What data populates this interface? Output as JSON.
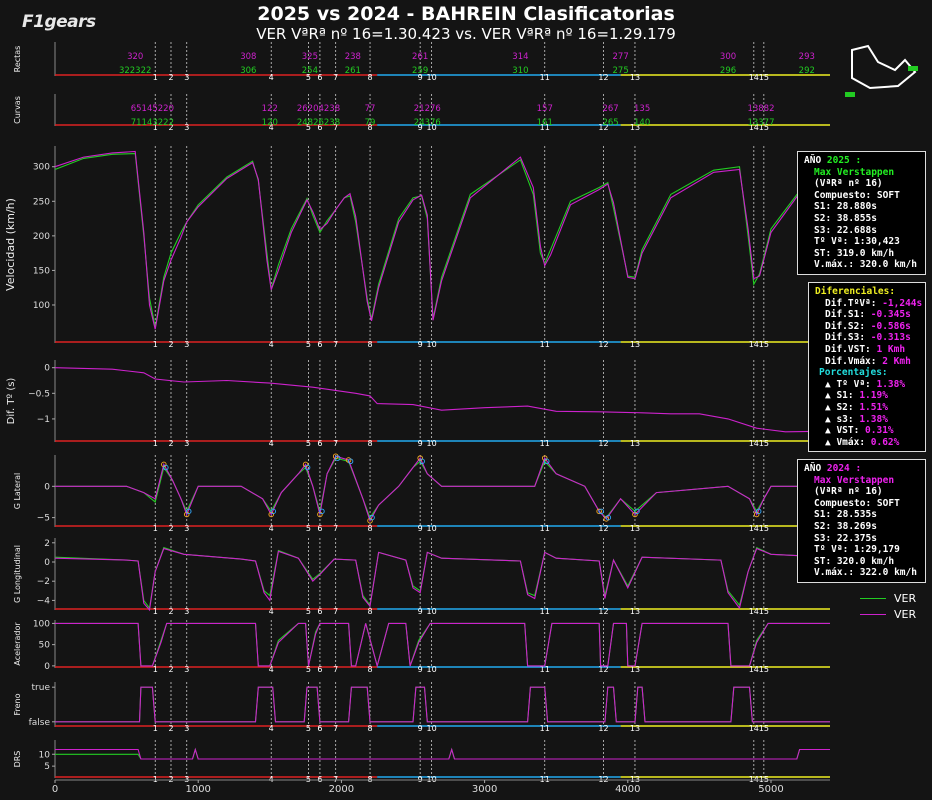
{
  "header": {
    "title": "2025 vs 2024 - BAHREIN Clasificatorias",
    "subtitle": "VER VªRª nº  16=1.30.423 vs. VER VªRª nº  16=1.29.179",
    "logo_text": "F1gears"
  },
  "colors": {
    "bg": "#141414",
    "series_2025": "#22cc22",
    "series_2024": "#cc22cc",
    "sector1": "#dd2222",
    "sector2": "#22aaee",
    "sector3": "#eeee22",
    "grid": "#444444"
  },
  "corners": {
    "labels": [
      "1",
      "2",
      "3",
      "4",
      "5",
      "6",
      "7",
      "8",
      "9",
      "10",
      "11",
      "12",
      "13",
      "14",
      "15"
    ],
    "distance_m": [
      700,
      810,
      920,
      1510,
      1770,
      1850,
      1960,
      2200,
      2550,
      2630,
      3420,
      3830,
      4050,
      4880,
      4950
    ]
  },
  "panels": {
    "rectas": {
      "ylabel": "Rectas",
      "top_values": [
        "320",
        "308",
        "325",
        "238",
        "261",
        "314",
        "277",
        "300",
        "293"
      ],
      "bottom_values": [
        "322322",
        "306",
        "254",
        "261",
        "259",
        "310",
        "275",
        "296",
        "292"
      ]
    },
    "curvas": {
      "ylabel": "Curvas",
      "top_values": [
        "65145220",
        "122",
        "26204238",
        "77",
        "21276",
        "157",
        "267",
        "135",
        "13882"
      ],
      "bottom_values": [
        "71143222",
        "120",
        "24826238",
        "79",
        "24376",
        "161",
        "265",
        "140",
        "13377"
      ]
    },
    "velocidad": {
      "ylabel": "Velocidad (km/h)",
      "ticks": [
        "100",
        "150",
        "200",
        "250",
        "300"
      ]
    },
    "dif": {
      "ylabel": "Dif. Tº (s)",
      "ticks": [
        "0",
        "−0.5",
        "−1"
      ]
    },
    "glat": {
      "ylabel": "G Lateral",
      "ticks": [
        "0",
        "−5"
      ]
    },
    "glong": {
      "ylabel": "G Longitudinal",
      "ticks": [
        "2",
        "0",
        "−2",
        "−4"
      ]
    },
    "acel": {
      "ylabel": "Acelerador",
      "ticks": [
        "100",
        "50",
        "0"
      ]
    },
    "freno": {
      "ylabel": "Freno",
      "ticks": [
        "true",
        "false"
      ]
    },
    "drs": {
      "ylabel": "DRS",
      "ticks": [
        "10",
        "5"
      ]
    }
  },
  "x_axis": {
    "ticks": [
      "0",
      "1000",
      "2000",
      "3000",
      "4000",
      "5000"
    ]
  },
  "legend": {
    "s1": "VER",
    "s2": "VER"
  },
  "box_2025": {
    "heading": "AÑO ",
    "year": "2025 :",
    "driver": "Max Verstappen",
    "lap": "(VªRª nº 16)",
    "compound": "Compuesto: SOFT",
    "s1": "S1: 28.880s",
    "s2": "S2: 38.855s",
    "s3": "S3: 22.688s",
    "time": "Tº Vª: 1:30,423",
    "st": "ST: 319.0 km/h",
    "vmax": "V.máx.: 320.0 km/h"
  },
  "box_diff": {
    "heading": "Diferenciales:",
    "rows": [
      {
        "label": "Dif.TºVª: ",
        "value": "-1,244s"
      },
      {
        "label": "Dif.S1: ",
        "value": "-0.345s"
      },
      {
        "label": "Dif.S2: ",
        "value": "-0.586s"
      },
      {
        "label": "Dif.S3: ",
        "value": "-0.313s"
      },
      {
        "label": "Dif.VST: ",
        "value": "1 Kmh"
      },
      {
        "label": "Dif.Vmáx: ",
        "value": "2 Kmh"
      }
    ],
    "pct_heading": "Porcentajes:",
    "pct_rows": [
      {
        "label": "▲ Tº Vª: ",
        "value": "1.38%"
      },
      {
        "label": "▲ S1: ",
        "value": "1.19%"
      },
      {
        "label": "▲ S2: ",
        "value": "1.51%"
      },
      {
        "label": "▲ s3: ",
        "value": "1.38%"
      },
      {
        "label": "▲ VST: ",
        "value": "0.31%"
      },
      {
        "label": "▲ Vmáx: ",
        "value": "0.62%"
      }
    ]
  },
  "box_2024": {
    "heading": "AÑO ",
    "year": "2024 :",
    "driver": "Max Verstappen",
    "lap": "(VªRª nº 16)",
    "compound": "Compuesto: SOFT",
    "s1": "S1: 28.535s",
    "s2": "S2: 38.269s",
    "s3": "S3: 22.375s",
    "time": "Tº Vª: 1:29,179",
    "st": "ST: 320.0 km/h",
    "vmax": "V.máx.: 322.0 km/h"
  },
  "chart_data": {
    "type": "line",
    "title": "2025 vs 2024 - BAHREIN Clasificatorias",
    "subtitle": "VER VªRª nº  16=1.30.423 vs. VER VªRª nº  16=1.29.179",
    "xlim": [
      0,
      5412
    ],
    "x_ticks": [
      0,
      1000,
      2000,
      3000,
      4000,
      5000
    ],
    "speed": {
      "ylabel": "Velocidad (km/h)",
      "ylim": [
        45,
        330
      ],
      "x": [
        0,
        200,
        400,
        560,
        620,
        660,
        700,
        760,
        810,
        880,
        920,
        1000,
        1200,
        1380,
        1420,
        1480,
        1510,
        1560,
        1650,
        1760,
        1800,
        1850,
        1900,
        1960,
        2020,
        2060,
        2100,
        2180,
        2210,
        2260,
        2400,
        2500,
        2560,
        2600,
        2640,
        2700,
        2900,
        3250,
        3340,
        3390,
        3420,
        3460,
        3600,
        3800,
        3860,
        3900,
        4000,
        4050,
        4100,
        4300,
        4600,
        4780,
        4840,
        4880,
        4920,
        5000,
        5200,
        5412
      ],
      "series": [
        {
          "name": "VER",
          "year": "2025",
          "values": [
            296,
            312,
            318,
            319,
            200,
            110,
            68,
            140,
            175,
            205,
            220,
            245,
            285,
            308,
            280,
            175,
            123,
            158,
            210,
            254,
            230,
            205,
            222,
            238,
            255,
            258,
            220,
            110,
            80,
            130,
            225,
            255,
            258,
            225,
            80,
            140,
            260,
            310,
            260,
            175,
            160,
            180,
            250,
            270,
            277,
            240,
            142,
            140,
            180,
            260,
            295,
            300,
            200,
            130,
            145,
            210,
            265,
            293
          ]
        },
        {
          "name": "VER",
          "year": "2024",
          "values": [
            300,
            314,
            320,
            322,
            205,
            100,
            65,
            135,
            165,
            198,
            220,
            242,
            283,
            306,
            282,
            165,
            122,
            150,
            205,
            252,
            235,
            209,
            218,
            238,
            255,
            261,
            228,
            105,
            77,
            125,
            220,
            252,
            259,
            230,
            78,
            135,
            255,
            314,
            270,
            185,
            157,
            172,
            245,
            267,
            275,
            248,
            140,
            138,
            175,
            255,
            292,
            296,
            210,
            138,
            142,
            205,
            262,
            292
          ]
        }
      ]
    },
    "delta_time": {
      "ylabel": "Dif. Tº (s)",
      "ylim": [
        -1.45,
        0.15
      ],
      "x": [
        0,
        400,
        620,
        700,
        900,
        1200,
        1500,
        1800,
        2100,
        2200,
        2250,
        2500,
        2700,
        3000,
        3300,
        3500,
        3800,
        4100,
        4300,
        4500,
        4700,
        4900,
        5100,
        5412
      ],
      "values": [
        0,
        -0.03,
        -0.1,
        -0.22,
        -0.28,
        -0.25,
        -0.3,
        -0.38,
        -0.5,
        -0.55,
        -0.7,
        -0.72,
        -0.83,
        -0.78,
        -0.75,
        -0.85,
        -0.86,
        -0.88,
        -0.9,
        -0.9,
        -1.0,
        -1.18,
        -1.25,
        -1.24
      ]
    },
    "lateral_g": {
      "ylabel": "G Lateral",
      "ylim": [
        -6.5,
        5
      ],
      "x": [
        0,
        500,
        620,
        700,
        760,
        820,
        880,
        920,
        1000,
        1300,
        1450,
        1510,
        1580,
        1700,
        1750,
        1800,
        1850,
        1900,
        1960,
        2050,
        2150,
        2200,
        2260,
        2400,
        2500,
        2550,
        2600,
        2700,
        3000,
        3350,
        3420,
        3500,
        3700,
        3800,
        3850,
        3950,
        4050,
        4200,
        4700,
        4850,
        4900,
        4950,
        5000,
        5200,
        5412
      ],
      "series": [
        {
          "name": "VER",
          "year": "2025",
          "values": [
            0,
            0,
            -1,
            -2.5,
            3,
            1,
            -2,
            -4,
            0,
            0,
            -2,
            -4,
            -1,
            2,
            3,
            0,
            -4,
            2,
            4.5,
            4,
            -2,
            -5,
            -3,
            0,
            3,
            4,
            2,
            0,
            0,
            0,
            4,
            2,
            0,
            -4,
            -5,
            -2,
            -4,
            -1,
            0,
            -2,
            -4,
            -2,
            0,
            0,
            0
          ]
        },
        {
          "name": "VER",
          "year": "2024",
          "values": [
            0,
            0,
            -1,
            -2,
            3.5,
            1,
            -2,
            -4.5,
            0,
            0,
            -2,
            -4.5,
            -1,
            2,
            3.5,
            0,
            -4.5,
            2,
            4.8,
            4.2,
            -2,
            -5.5,
            -3,
            0,
            3,
            4.5,
            2,
            0,
            0,
            0,
            4.5,
            2,
            0,
            -4,
            -5.2,
            -2,
            -4.5,
            -1,
            0,
            -2,
            -4.5,
            -2,
            0,
            0,
            0
          ]
        }
      ]
    },
    "longitudinal_g": {
      "ylabel": "G Longitudinal",
      "ylim": [
        -5,
        2.5
      ],
      "x": [
        0,
        500,
        580,
        620,
        660,
        700,
        760,
        900,
        1300,
        1400,
        1460,
        1500,
        1560,
        1700,
        1800,
        1850,
        1950,
        2100,
        2150,
        2200,
        2260,
        2450,
        2500,
        2550,
        2600,
        2700,
        3250,
        3300,
        3350,
        3420,
        3500,
        3800,
        3840,
        3900,
        4000,
        4100,
        4650,
        4700,
        4780,
        4840,
        4900,
        5000,
        5412
      ],
      "series": [
        {
          "name": "VER",
          "year": "2025",
          "values": [
            0.5,
            0.2,
            0.1,
            -4,
            -4.8,
            -1,
            1.5,
            0.8,
            0.3,
            0.1,
            -3,
            -3.5,
            1.2,
            0.4,
            -1.8,
            -1.2,
            0.3,
            0.2,
            -3.5,
            -4.5,
            1,
            0.2,
            -2.5,
            -3,
            1,
            0.4,
            0.1,
            -3.2,
            -3.5,
            1,
            0.4,
            0.1,
            -3.5,
            0.2,
            -2.5,
            0.5,
            0.2,
            -3,
            -4.5,
            -1,
            1.5,
            0.8,
            0.5
          ]
        },
        {
          "name": "VER",
          "year": "2024",
          "values": [
            0.4,
            0.2,
            0.1,
            -4.3,
            -5,
            -1,
            1.4,
            0.8,
            0.3,
            0.1,
            -3.2,
            -4,
            1.1,
            0.4,
            -2,
            -1.3,
            0.3,
            0.2,
            -3.7,
            -4.6,
            1,
            0.2,
            -2.7,
            -3.2,
            1,
            0.4,
            0.1,
            -3.4,
            -3.8,
            1,
            0.4,
            0.1,
            -3.8,
            0.2,
            -2.7,
            0.5,
            0.2,
            -3.2,
            -4.8,
            -1,
            1.4,
            0.8,
            0.5
          ]
        }
      ]
    },
    "throttle": {
      "ylabel": "Acelerador",
      "ylim": [
        -5,
        108
      ],
      "x": [
        0,
        580,
        600,
        680,
        740,
        780,
        860,
        1400,
        1420,
        1500,
        1560,
        1700,
        1750,
        1770,
        1820,
        1850,
        1900,
        2050,
        2070,
        2100,
        2170,
        2250,
        2330,
        2450,
        2480,
        2540,
        2620,
        2680,
        3280,
        3300,
        3420,
        3470,
        3800,
        3810,
        3860,
        3900,
        3990,
        4000,
        4050,
        4100,
        4700,
        4720,
        4850,
        4900,
        4980,
        5412
      ],
      "series": [
        {
          "name": "VER",
          "year": "2025",
          "values": [
            100,
            100,
            0,
            0,
            60,
            100,
            100,
            100,
            0,
            0,
            60,
            100,
            100,
            0,
            80,
            100,
            100,
            100,
            0,
            0,
            100,
            0,
            100,
            100,
            0,
            60,
            100,
            100,
            100,
            0,
            0,
            100,
            100,
            0,
            0,
            100,
            100,
            0,
            0,
            100,
            100,
            0,
            0,
            60,
            100,
            100
          ]
        },
        {
          "name": "VER",
          "year": "2024",
          "values": [
            100,
            100,
            0,
            0,
            55,
            100,
            100,
            100,
            0,
            0,
            55,
            100,
            100,
            0,
            75,
            100,
            100,
            100,
            0,
            0,
            100,
            0,
            100,
            100,
            0,
            55,
            100,
            100,
            100,
            0,
            0,
            100,
            100,
            0,
            0,
            100,
            100,
            0,
            0,
            100,
            100,
            0,
            0,
            55,
            100,
            100
          ]
        }
      ]
    },
    "brake": {
      "ylabel": "Freno",
      "ytick_labels": [
        "false",
        "true"
      ],
      "x": [
        0,
        590,
        600,
        680,
        700,
        1400,
        1420,
        1520,
        1540,
        1740,
        1760,
        1830,
        1850,
        2050,
        2070,
        2180,
        2200,
        2250,
        2270,
        2500,
        2520,
        2580,
        2600,
        3300,
        3320,
        3420,
        3440,
        3840,
        3860,
        3900,
        3920,
        4050,
        4070,
        4100,
        4120,
        4720,
        4740,
        4850,
        4870,
        5412
      ],
      "series": [
        {
          "name": "VER",
          "year": "2025",
          "values": [
            0,
            0,
            1,
            1,
            0,
            0,
            1,
            1,
            0,
            0,
            1,
            1,
            0,
            0,
            1,
            1,
            0,
            0,
            0,
            0,
            1,
            1,
            0,
            0,
            1,
            1,
            0,
            0,
            1,
            1,
            0,
            0,
            1,
            1,
            0,
            0,
            1,
            1,
            0,
            0
          ]
        },
        {
          "name": "VER",
          "year": "2024",
          "values": [
            0,
            0,
            1,
            1,
            0,
            0,
            1,
            1,
            0,
            0,
            1,
            1,
            0,
            0,
            1,
            1,
            0,
            0,
            0,
            0,
            1,
            1,
            0,
            0,
            1,
            1,
            0,
            0,
            1,
            1,
            0,
            0,
            1,
            1,
            0,
            0,
            1,
            1,
            0,
            0
          ]
        }
      ]
    },
    "drs": {
      "ylabel": "DRS",
      "ylim": [
        0,
        16
      ],
      "x": [
        0,
        580,
        600,
        960,
        980,
        1000,
        2750,
        2770,
        2790,
        5000,
        5180,
        5200,
        5412
      ],
      "series": [
        {
          "name": "VER",
          "year": "2025",
          "values": [
            10,
            10,
            8,
            8,
            12,
            8,
            8,
            12,
            8,
            8,
            8,
            12,
            12
          ]
        },
        {
          "name": "VER",
          "year": "2024",
          "values": [
            12,
            12,
            8,
            8,
            12,
            8,
            8,
            12,
            8,
            8,
            8,
            12,
            12
          ]
        }
      ]
    }
  }
}
